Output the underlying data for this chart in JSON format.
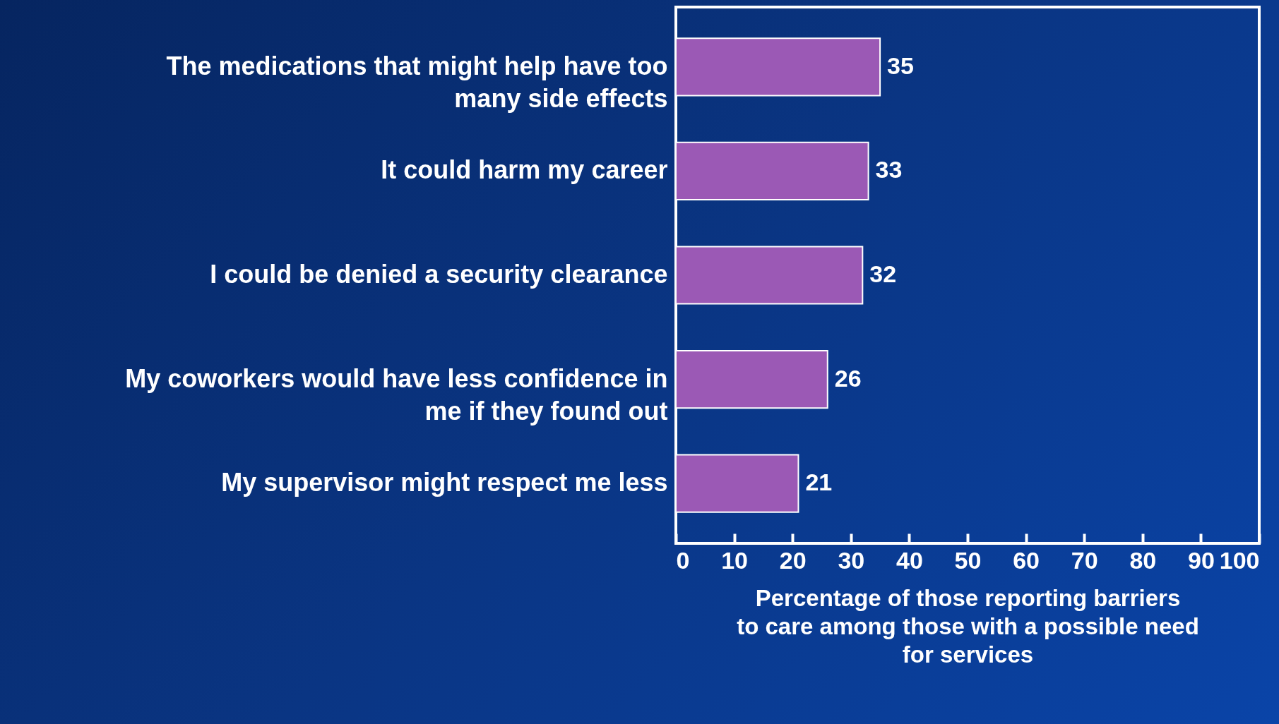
{
  "chart_data": {
    "type": "bar",
    "orientation": "horizontal",
    "categories": [
      "The medications that might help have too many side effects",
      "It could harm my career",
      "I could be denied a security clearance",
      "My coworkers would have less confidence in me if they found out",
      "My supervisor might respect me less"
    ],
    "values": [
      35,
      33,
      32,
      26,
      21
    ],
    "color": "#9b59b5",
    "xlim": [
      0,
      100
    ],
    "xticks": [
      0,
      10,
      20,
      30,
      40,
      50,
      60,
      70,
      80,
      90,
      100
    ],
    "xlabel": "Percentage of those reporting barriers to care among those with a possible need for services",
    "data_labels": true
  }
}
